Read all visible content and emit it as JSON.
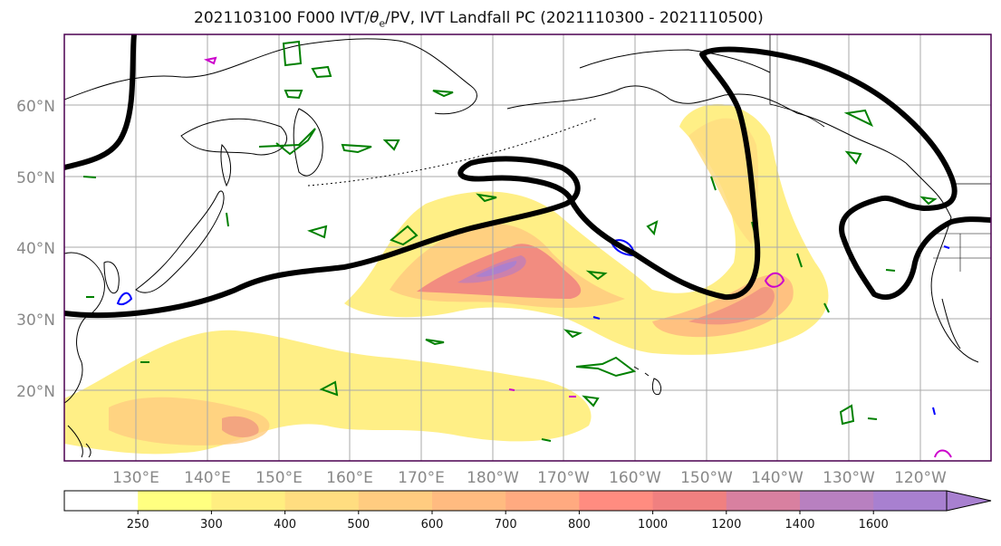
{
  "figure": {
    "title_prefix": "2021103100 F000 IVT/",
    "title_theta": "θ",
    "title_sub": "e",
    "title_suffix": "/PV, IVT Landfall PC (2021110300 - 2021110500)"
  },
  "map": {
    "lat_labels": [
      "60°N",
      "50°N",
      "40°N",
      "30°N",
      "20°N"
    ],
    "lon_labels": [
      "130°E",
      "140°E",
      "150°E",
      "160°E",
      "170°E",
      "180°W",
      "170°W",
      "160°W",
      "150°W",
      "140°W",
      "130°W",
      "120°W"
    ],
    "colors": {
      "land_outline": "#000000",
      "grid": "#aaaaaa",
      "landfall_pc": "#000000",
      "theta_e": "#008000",
      "pv_blue": "#0000ff",
      "pv_magenta": "#cc00cc"
    }
  },
  "colorbar": {
    "tick_labels": [
      "250",
      "300",
      "400",
      "500",
      "600",
      "700",
      "800",
      "1000",
      "1200",
      "1400",
      "1600"
    ],
    "colors": [
      "#ffffff",
      "#ffff80",
      "#ffee80",
      "#ffdd80",
      "#ffcc80",
      "#ffbb80",
      "#ffaa80",
      "#ff8c80",
      "#f08080",
      "#d880a0",
      "#b880c0",
      "#a880d0"
    ]
  }
}
